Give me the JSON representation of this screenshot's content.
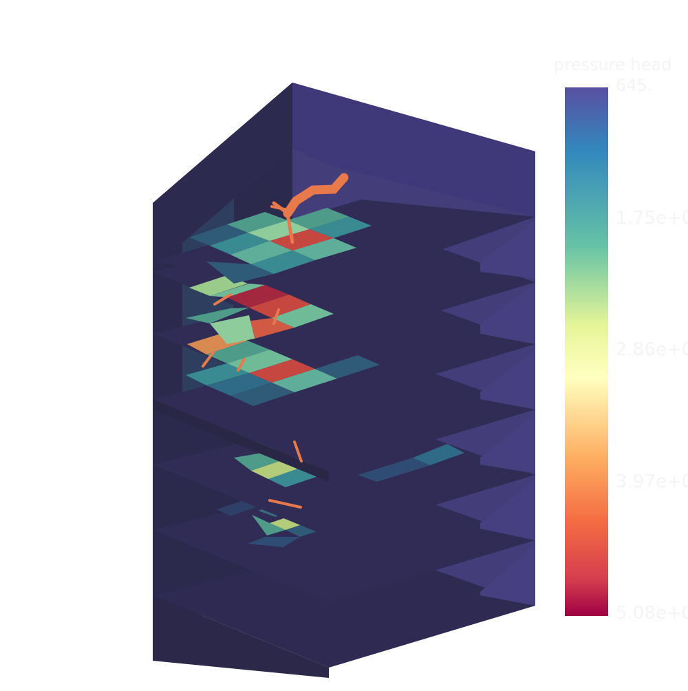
{
  "scene": {
    "description_hidden": "",
    "colormap": "Spectral_r",
    "colors": {
      "background": "#ffffff",
      "low": "#2e2a52",
      "box_side_dark": "#2c2a4e",
      "box_side_light": "#453f7d",
      "root": "#e8794a"
    },
    "layer_count": 7
  },
  "colorbar": {
    "title": "pressure head",
    "max_label": "645.",
    "ticks": [
      "1.75e+0",
      "2.86e+0",
      "3.97e+0",
      "5.08e+0"
    ]
  }
}
